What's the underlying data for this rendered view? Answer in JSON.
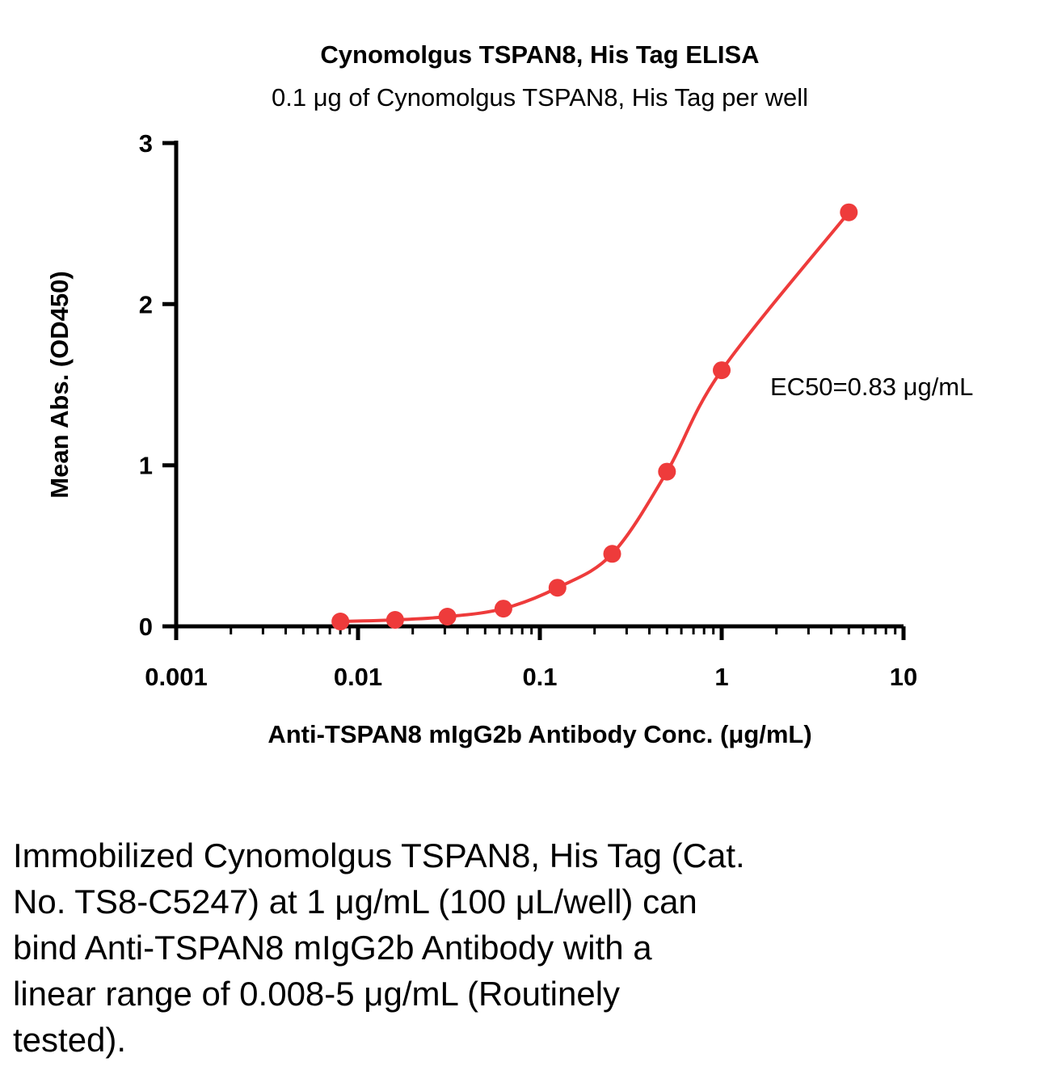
{
  "chart_data": {
    "type": "scatter",
    "title": "Cynomolgus TSPAN8, His Tag ELISA",
    "subtitle": "0.1 μg of Cynomolgus TSPAN8, His Tag per well",
    "xlabel": "Anti-TSPAN8 mIgG2b Antibody Conc. (μg/mL)",
    "ylabel": "Mean Abs. (OD450)",
    "x_scale": "log10",
    "xlim": [
      0.001,
      10
    ],
    "ylim": [
      0,
      3
    ],
    "grid": false,
    "legend_position": "none",
    "x_ticks": [
      {
        "value": 0.001,
        "label": "0.001"
      },
      {
        "value": 0.01,
        "label": "0.01"
      },
      {
        "value": 0.1,
        "label": "0.1"
      },
      {
        "value": 1,
        "label": "1"
      },
      {
        "value": 10,
        "label": "10"
      }
    ],
    "y_ticks": [
      {
        "value": 0,
        "label": "0"
      },
      {
        "value": 1,
        "label": "1"
      },
      {
        "value": 2,
        "label": "2"
      },
      {
        "value": 3,
        "label": "3"
      }
    ],
    "series": [
      {
        "name": "Cynomolgus TSPAN8, His Tag",
        "color": "#ee3b3b",
        "x": [
          0.008,
          0.016,
          0.031,
          0.063,
          0.125,
          0.25,
          0.5,
          1,
          5
        ],
        "y": [
          0.03,
          0.04,
          0.06,
          0.11,
          0.24,
          0.45,
          0.96,
          1.59,
          2.57
        ]
      }
    ],
    "annotation": "EC50=0.83 μg/mL"
  },
  "caption": {
    "lines": [
      "Immobilized Cynomolgus TSPAN8, His Tag (Cat.",
      "No. TS8-C5247) at 1 μg/mL (100 μL/well) can",
      "bind Anti-TSPAN8 mIgG2b Antibody with a",
      "linear range of 0.008-5 μg/mL (Routinely",
      "tested)."
    ]
  }
}
